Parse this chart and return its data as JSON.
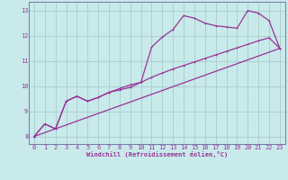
{
  "xlabel": "Windchill (Refroidissement éolien,°C)",
  "bg_color": "#c8eaea",
  "line_color": "#993399",
  "grid_color": "#aacccc",
  "spine_color": "#7777aa",
  "xlim": [
    -0.5,
    23.5
  ],
  "ylim": [
    7.7,
    13.35
  ],
  "xticks": [
    0,
    1,
    2,
    3,
    4,
    5,
    6,
    7,
    8,
    9,
    10,
    11,
    12,
    13,
    14,
    15,
    16,
    17,
    18,
    19,
    20,
    21,
    22,
    23
  ],
  "yticks": [
    8,
    9,
    10,
    11,
    12,
    13
  ],
  "line1_x": [
    0,
    1,
    2,
    3,
    4,
    5,
    6,
    7,
    8,
    9,
    10,
    11,
    12,
    13,
    14,
    15,
    16,
    17,
    18,
    19,
    20,
    21,
    22,
    23
  ],
  "line1_y": [
    8.0,
    8.5,
    8.3,
    9.4,
    9.6,
    9.4,
    9.55,
    9.75,
    9.9,
    10.05,
    10.15,
    11.55,
    11.95,
    12.25,
    12.8,
    12.7,
    12.5,
    12.4,
    12.35,
    12.3,
    13.0,
    12.9,
    12.6,
    11.5
  ],
  "line2_x": [
    0,
    1,
    2,
    3,
    4,
    5,
    6,
    7,
    8,
    9,
    10,
    11,
    12,
    13,
    14,
    15,
    16,
    17,
    18,
    19,
    20,
    21,
    22,
    23
  ],
  "line2_y": [
    8.0,
    8.5,
    8.3,
    9.4,
    9.6,
    9.4,
    9.55,
    9.75,
    9.85,
    9.95,
    10.15,
    10.35,
    10.52,
    10.68,
    10.82,
    10.96,
    11.1,
    11.24,
    11.38,
    11.52,
    11.66,
    11.8,
    11.92,
    11.5
  ],
  "line3_x": [
    0,
    23
  ],
  "line3_y": [
    8.0,
    11.5
  ],
  "xlabel_fontsize": 5.0,
  "tick_fontsize": 5.0
}
